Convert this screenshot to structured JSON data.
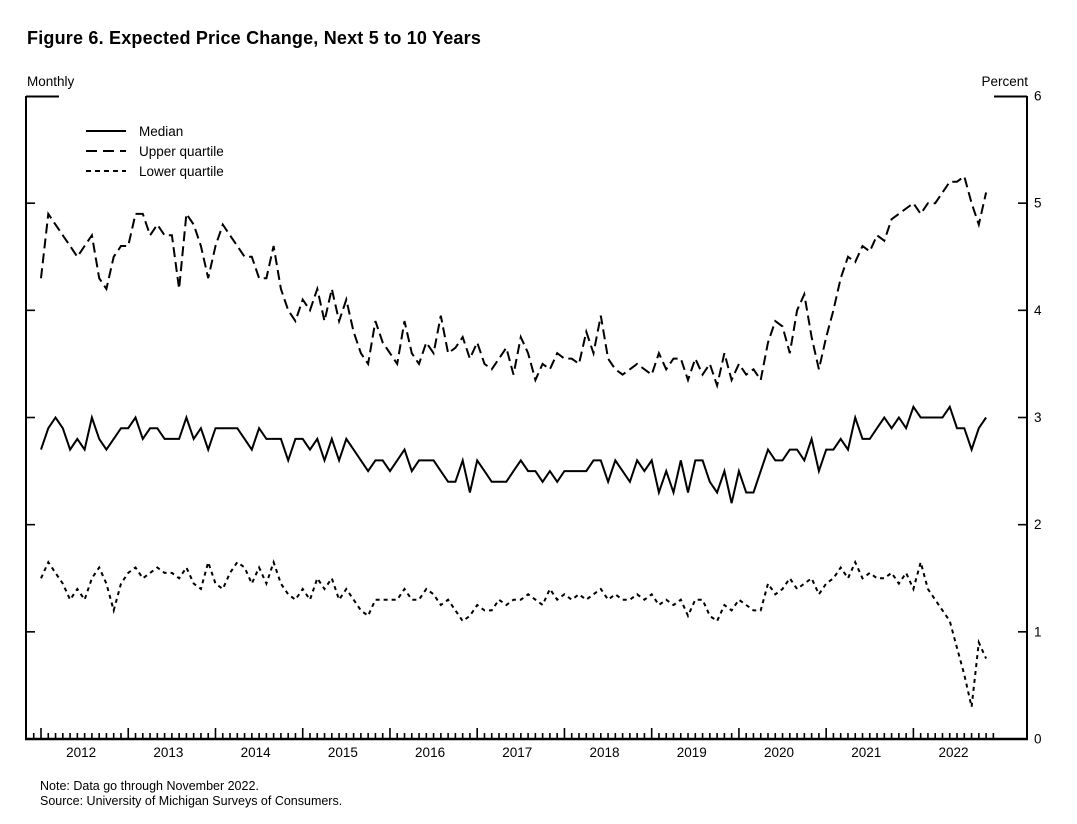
{
  "figure": {
    "title": "Figure 6. Expected Price Change, Next 5 to 10 Years",
    "frequency_label": "Monthly",
    "unit_label": "Percent",
    "note": "Note: Data go through November 2022.",
    "source": "Source: University of Michigan Surveys of Consumers."
  },
  "legend": {
    "items": [
      {
        "label": "Median",
        "line_style": "solid"
      },
      {
        "label": "Upper quartile",
        "line_style": "long-dash"
      },
      {
        "label": "Lower quartile",
        "line_style": "short-dash"
      }
    ]
  },
  "chart_data": {
    "type": "line",
    "title": "Figure 6. Expected Price Change, Next 5 to 10 Years",
    "ylabel": "Percent",
    "xlabel": "",
    "ylim": [
      0,
      6
    ],
    "yticks": [
      0,
      1,
      2,
      3,
      4,
      5,
      6
    ],
    "grid": false,
    "legend_position": "top-left-inside",
    "line_color": "#000000",
    "x_frequency": "monthly",
    "x_start_month": "2012-01",
    "x_end_month": "2022-11",
    "x_tick_years": [
      2012,
      2013,
      2014,
      2015,
      2016,
      2017,
      2018,
      2019,
      2020,
      2021,
      2022
    ],
    "series": [
      {
        "name": "Median",
        "line_style": "solid",
        "values": [
          2.7,
          2.9,
          3.0,
          2.9,
          2.7,
          2.8,
          2.7,
          3.0,
          2.8,
          2.7,
          2.8,
          2.9,
          2.9,
          3.0,
          2.8,
          2.9,
          2.9,
          2.8,
          2.8,
          2.8,
          3.0,
          2.8,
          2.9,
          2.7,
          2.9,
          2.9,
          2.9,
          2.9,
          2.8,
          2.7,
          2.9,
          2.8,
          2.8,
          2.8,
          2.6,
          2.8,
          2.8,
          2.7,
          2.8,
          2.6,
          2.8,
          2.6,
          2.8,
          2.7,
          2.6,
          2.5,
          2.6,
          2.6,
          2.5,
          2.6,
          2.7,
          2.5,
          2.6,
          2.6,
          2.6,
          2.5,
          2.4,
          2.4,
          2.6,
          2.3,
          2.6,
          2.5,
          2.4,
          2.4,
          2.4,
          2.5,
          2.6,
          2.5,
          2.5,
          2.4,
          2.5,
          2.4,
          2.5,
          2.5,
          2.5,
          2.5,
          2.6,
          2.6,
          2.4,
          2.6,
          2.5,
          2.4,
          2.6,
          2.5,
          2.6,
          2.3,
          2.5,
          2.3,
          2.6,
          2.3,
          2.6,
          2.6,
          2.4,
          2.3,
          2.5,
          2.2,
          2.5,
          2.3,
          2.3,
          2.5,
          2.7,
          2.6,
          2.6,
          2.7,
          2.7,
          2.6,
          2.8,
          2.5,
          2.7,
          2.7,
          2.8,
          2.7,
          3.0,
          2.8,
          2.8,
          2.9,
          3.0,
          2.9,
          3.0,
          2.9,
          3.1,
          3.0,
          3.0,
          3.0,
          3.0,
          3.1,
          2.9,
          2.9,
          2.7,
          2.9,
          3.0
        ]
      },
      {
        "name": "Upper quartile",
        "line_style": "long-dash",
        "values": [
          4.3,
          4.9,
          4.8,
          4.7,
          4.6,
          4.5,
          4.6,
          4.7,
          4.3,
          4.2,
          4.5,
          4.6,
          4.6,
          4.9,
          4.9,
          4.7,
          4.8,
          4.7,
          4.7,
          4.2,
          4.9,
          4.8,
          4.6,
          4.3,
          4.6,
          4.8,
          4.7,
          4.6,
          4.5,
          4.5,
          4.3,
          4.3,
          4.6,
          4.2,
          4.0,
          3.9,
          4.1,
          4.0,
          4.2,
          3.9,
          4.2,
          3.9,
          4.1,
          3.8,
          3.6,
          3.5,
          3.9,
          3.7,
          3.6,
          3.5,
          3.9,
          3.6,
          3.5,
          3.7,
          3.6,
          3.95,
          3.6,
          3.65,
          3.75,
          3.55,
          3.7,
          3.5,
          3.45,
          3.55,
          3.65,
          3.4,
          3.75,
          3.6,
          3.35,
          3.5,
          3.45,
          3.6,
          3.55,
          3.55,
          3.5,
          3.8,
          3.6,
          3.95,
          3.55,
          3.45,
          3.4,
          3.45,
          3.5,
          3.45,
          3.4,
          3.6,
          3.45,
          3.55,
          3.55,
          3.35,
          3.55,
          3.4,
          3.5,
          3.3,
          3.6,
          3.35,
          3.5,
          3.4,
          3.45,
          3.35,
          3.7,
          3.9,
          3.85,
          3.6,
          4.0,
          4.15,
          3.75,
          3.45,
          3.75,
          4.0,
          4.3,
          4.5,
          4.45,
          4.6,
          4.55,
          4.7,
          4.65,
          4.85,
          4.9,
          4.95,
          5.0,
          4.9,
          5.0,
          5.0,
          5.1,
          5.2,
          5.2,
          5.25,
          5.0,
          4.8,
          5.1
        ]
      },
      {
        "name": "Lower quartile",
        "line_style": "short-dash",
        "values": [
          1.5,
          1.65,
          1.55,
          1.45,
          1.3,
          1.4,
          1.3,
          1.5,
          1.6,
          1.45,
          1.2,
          1.45,
          1.55,
          1.6,
          1.5,
          1.55,
          1.6,
          1.55,
          1.55,
          1.5,
          1.6,
          1.45,
          1.4,
          1.65,
          1.45,
          1.4,
          1.55,
          1.65,
          1.6,
          1.45,
          1.6,
          1.45,
          1.65,
          1.45,
          1.35,
          1.3,
          1.4,
          1.3,
          1.5,
          1.4,
          1.5,
          1.3,
          1.4,
          1.3,
          1.2,
          1.15,
          1.3,
          1.3,
          1.3,
          1.3,
          1.4,
          1.3,
          1.3,
          1.4,
          1.35,
          1.25,
          1.3,
          1.2,
          1.1,
          1.15,
          1.25,
          1.2,
          1.2,
          1.3,
          1.25,
          1.3,
          1.3,
          1.35,
          1.3,
          1.25,
          1.4,
          1.3,
          1.35,
          1.3,
          1.35,
          1.3,
          1.35,
          1.4,
          1.3,
          1.35,
          1.3,
          1.3,
          1.35,
          1.3,
          1.35,
          1.25,
          1.3,
          1.25,
          1.3,
          1.15,
          1.3,
          1.3,
          1.15,
          1.1,
          1.25,
          1.2,
          1.3,
          1.25,
          1.2,
          1.2,
          1.45,
          1.35,
          1.4,
          1.5,
          1.4,
          1.45,
          1.5,
          1.35,
          1.45,
          1.5,
          1.6,
          1.5,
          1.65,
          1.5,
          1.55,
          1.5,
          1.5,
          1.55,
          1.45,
          1.55,
          1.4,
          1.65,
          1.4,
          1.3,
          1.2,
          1.1,
          0.85,
          0.6,
          0.3,
          0.9,
          0.75
        ]
      }
    ]
  }
}
